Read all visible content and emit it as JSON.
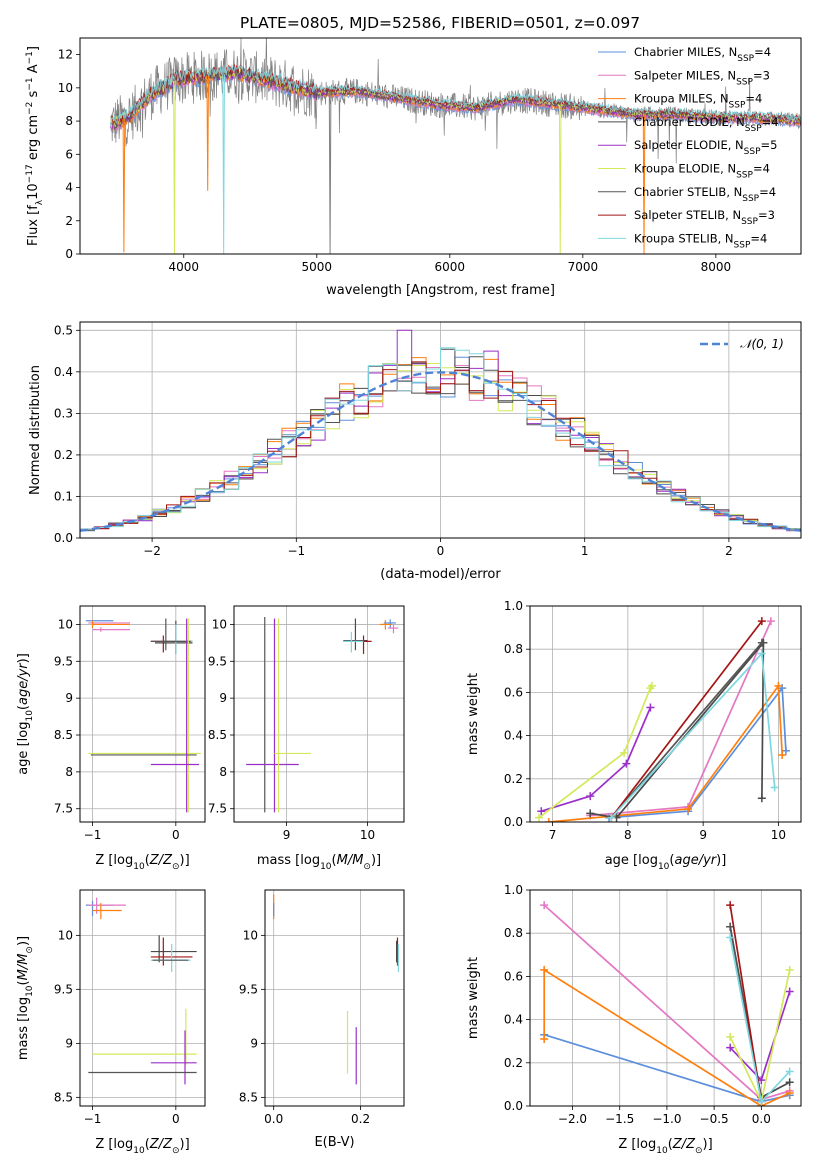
{
  "figure_title": "PLATE=0805, MJD=52586, FIBERID=0501, z=0.097",
  "colors": {
    "Chabrier MILES": "#5b8fdc",
    "Salpeter MILES": "#e377c2",
    "Kroupa MILES": "#ff7f0e",
    "Chabrier ELODIE": "#4a4a4a",
    "Salpeter ELODIE": "#9b30c8",
    "Kroupa ELODIE": "#d4e85a",
    "Chabrier STELIB": "#555555",
    "Salpeter STELIB": "#a31515",
    "Kroupa STELIB": "#7fd8e0",
    "data_spectrum": "#808080",
    "normal_curve": "#4f83d6"
  },
  "chart_data": [
    {
      "id": "spectrum",
      "type": "line",
      "xlabel": "wavelength [Angstrom, rest frame]",
      "ylabel": "Flux [fλ10⁻¹⁷ erg cm⁻² s⁻¹ A⁻¹]",
      "xlim": [
        3220,
        8640
      ],
      "ylim": [
        0,
        13
      ],
      "xticks": [
        4000,
        5000,
        6000,
        7000,
        8000
      ],
      "yticks": [
        0,
        2,
        4,
        6,
        8,
        10,
        12
      ],
      "grid": false,
      "legend_position": "upper right",
      "legend": [
        {
          "label": "Chabrier MILES, N",
          "sub": "SSP",
          "suffix": "=4",
          "color_key": "Chabrier MILES"
        },
        {
          "label": "Salpeter MILES, N",
          "sub": "SSP",
          "suffix": "=3",
          "color_key": "Salpeter MILES"
        },
        {
          "label": "Kroupa MILES, N",
          "sub": "SSP",
          "suffix": "=4",
          "color_key": "Kroupa MILES"
        },
        {
          "label": "Chabrier ELODIE, N",
          "sub": "SSP",
          "suffix": "=4",
          "color_key": "Chabrier ELODIE"
        },
        {
          "label": "Salpeter ELODIE, N",
          "sub": "SSP",
          "suffix": "=5",
          "color_key": "Salpeter ELODIE"
        },
        {
          "label": "Kroupa ELODIE, N",
          "sub": "SSP",
          "suffix": "=4",
          "color_key": "Kroupa ELODIE"
        },
        {
          "label": "Chabrier STELIB, N",
          "sub": "SSP",
          "suffix": "=4",
          "color_key": "Chabrier STELIB"
        },
        {
          "label": "Salpeter STELIB, N",
          "sub": "SSP",
          "suffix": "=3",
          "color_key": "Salpeter STELIB"
        },
        {
          "label": "Kroupa STELIB, N",
          "sub": "SSP",
          "suffix": "=4",
          "color_key": "Kroupa STELIB"
        }
      ],
      "continuum": [
        [
          3450,
          7.8
        ],
        [
          3600,
          8.3
        ],
        [
          3750,
          9.6
        ],
        [
          3950,
          10.5
        ],
        [
          4150,
          10.7
        ],
        [
          4400,
          10.9
        ],
        [
          4700,
          10.3
        ],
        [
          5000,
          9.7
        ],
        [
          5300,
          9.8
        ],
        [
          5600,
          9.4
        ],
        [
          5900,
          9.0
        ],
        [
          6200,
          8.8
        ],
        [
          6500,
          9.3
        ],
        [
          6800,
          9.0
        ],
        [
          7100,
          8.7
        ],
        [
          7400,
          8.4
        ],
        [
          7700,
          8.4
        ],
        [
          8000,
          8.2
        ],
        [
          8300,
          8.2
        ],
        [
          8640,
          8.0
        ]
      ],
      "dips": [
        {
          "x": 3550,
          "y": 0.1,
          "color_key": "Kroupa MILES"
        },
        {
          "x": 3930,
          "y": 0.0,
          "color_key": "Kroupa ELODIE"
        },
        {
          "x": 4180,
          "y": 3.8,
          "color_key": "Kroupa MILES"
        },
        {
          "x": 4300,
          "y": 0.0,
          "color_key": "Kroupa STELIB"
        },
        {
          "x": 5100,
          "y": 0.0,
          "color_key": "data_spectrum"
        },
        {
          "x": 6830,
          "y": 0.0,
          "color_key": "Kroupa ELODIE"
        },
        {
          "x": 7460,
          "y": 0.0,
          "color_key": "Kroupa MILES"
        }
      ]
    },
    {
      "id": "residual-histogram",
      "type": "bar",
      "xlabel": "(data-model)/error",
      "ylabel": "Normed distribution",
      "xlim": [
        -2.5,
        2.5
      ],
      "ylim": [
        0,
        0.52
      ],
      "xticks": [
        -2,
        -1,
        0,
        1,
        2
      ],
      "yticks": [
        0.0,
        0.1,
        0.2,
        0.3,
        0.4,
        0.5
      ],
      "grid": true,
      "legend_position": "upper right",
      "legend": [
        {
          "label": "𝒩(0, 1)",
          "style": "dashed"
        }
      ],
      "bin_width": 0.1
    },
    {
      "id": "age-vs-Z",
      "type": "scatter",
      "xlabel": "Z [log₁₀(Z/Z⊙)]",
      "ylabel": "age  [log₁₀(age/yr)]",
      "xlim": [
        -1.15,
        0.35
      ],
      "ylim": [
        7.32,
        10.25
      ],
      "xticks": [
        -1,
        0
      ],
      "yticks": [
        7.5,
        8.0,
        8.5,
        9.0,
        9.5,
        10.0
      ],
      "grid": true
    },
    {
      "id": "age-vs-mass",
      "type": "scatter",
      "xlabel": "mass [log₁₀(M/M⊙)]",
      "ylabel": "",
      "xlim": [
        8.35,
        10.45
      ],
      "ylim": [
        7.32,
        10.25
      ],
      "xticks": [
        9,
        10
      ],
      "yticks": [
        7.5,
        8.0,
        8.5,
        9.0,
        9.5,
        10.0
      ],
      "grid": true
    },
    {
      "id": "massweight-vs-age",
      "type": "line",
      "xlabel": "age  [log₁₀(age/yr)]",
      "ylabel": "mass weight",
      "xlim": [
        6.7,
        10.3
      ],
      "ylim": [
        0,
        1.0
      ],
      "xticks": [
        7,
        8,
        9,
        10
      ],
      "yticks": [
        0.0,
        0.2,
        0.4,
        0.6,
        0.8,
        1.0
      ],
      "grid": true,
      "series": [
        {
          "color_key": "Chabrier MILES",
          "x": [
            7.75,
            8.8,
            10.05,
            10.1
          ],
          "y": [
            0.02,
            0.05,
            0.62,
            0.33
          ]
        },
        {
          "color_key": "Salpeter MILES",
          "x": [
            7.5,
            8.8,
            9.9
          ],
          "y": [
            0.03,
            0.07,
            0.93
          ]
        },
        {
          "color_key": "Kroupa MILES",
          "x": [
            6.95,
            8.8,
            10.0,
            10.05
          ],
          "y": [
            0.0,
            0.06,
            0.63,
            0.31
          ]
        },
        {
          "color_key": "Chabrier ELODIE",
          "x": [
            7.5,
            7.85,
            9.8,
            9.78
          ],
          "y": [
            0.04,
            0.02,
            0.83,
            0.11
          ]
        },
        {
          "color_key": "Salpeter ELODIE",
          "x": [
            6.85,
            7.5,
            7.98,
            8.3
          ],
          "y": [
            0.05,
            0.12,
            0.27,
            0.53
          ]
        },
        {
          "color_key": "Kroupa ELODIE",
          "x": [
            6.82,
            7.95,
            8.3,
            8.32
          ],
          "y": [
            0.02,
            0.32,
            0.62,
            0.63
          ]
        },
        {
          "color_key": "Chabrier STELIB",
          "x": [
            7.78,
            9.78
          ],
          "y": [
            0.02,
            0.83
          ]
        },
        {
          "color_key": "Salpeter STELIB",
          "x": [
            7.78,
            9.78
          ],
          "y": [
            0.02,
            0.93
          ]
        },
        {
          "color_key": "Kroupa STELIB",
          "x": [
            7.78,
            9.78,
            9.95
          ],
          "y": [
            0.02,
            0.78,
            0.16
          ]
        }
      ]
    },
    {
      "id": "mass-vs-Z",
      "type": "scatter",
      "xlabel": "Z [log₁₀(Z/Z⊙)]",
      "ylabel": "mass [log₁₀(M/M⊙)]",
      "xlim": [
        -1.15,
        0.35
      ],
      "ylim": [
        8.42,
        10.42
      ],
      "xticks": [
        -1,
        0
      ],
      "yticks": [
        8.5,
        9.0,
        9.5,
        10.0
      ],
      "grid": true
    },
    {
      "id": "mass-vs-EBV",
      "type": "scatter",
      "xlabel": "E(B-V)",
      "ylabel": "",
      "xlim": [
        -0.02,
        0.3
      ],
      "ylim": [
        8.42,
        10.42
      ],
      "xticks": [
        0.0,
        0.2
      ],
      "yticks": [
        8.5,
        9.0,
        9.5,
        10.0
      ],
      "grid": true
    },
    {
      "id": "massweight-vs-Z",
      "type": "line",
      "xlabel": "Z [log₁₀(Z/Z⊙)]",
      "ylabel": "mass weight",
      "xlim": [
        -2.45,
        0.42
      ],
      "ylim": [
        0,
        1.0
      ],
      "xticks": [
        -2.0,
        -1.5,
        -1.0,
        -0.5,
        0.0
      ],
      "yticks": [
        0.0,
        0.2,
        0.4,
        0.6,
        0.8,
        1.0
      ],
      "grid": true,
      "series": [
        {
          "color_key": "Chabrier MILES",
          "x": [
            -2.3,
            0.0,
            0.3
          ],
          "y": [
            0.33,
            0.02,
            0.05
          ]
        },
        {
          "color_key": "Salpeter MILES",
          "x": [
            -2.3,
            0.0,
            0.3
          ],
          "y": [
            0.93,
            0.03,
            0.07
          ]
        },
        {
          "color_key": "Kroupa MILES",
          "x": [
            -2.3,
            -2.3,
            0.0,
            0.3
          ],
          "y": [
            0.31,
            0.63,
            0.0,
            0.06
          ]
        },
        {
          "color_key": "Chabrier ELODIE",
          "x": [
            -0.33,
            0.0,
            0.3
          ],
          "y": [
            0.83,
            0.04,
            0.11
          ]
        },
        {
          "color_key": "Salpeter ELODIE",
          "x": [
            -0.33,
            0.0,
            0.3
          ],
          "y": [
            0.27,
            0.12,
            0.53
          ]
        },
        {
          "color_key": "Kroupa ELODIE",
          "x": [
            -0.33,
            0.0,
            0.3
          ],
          "y": [
            0.32,
            0.02,
            0.63
          ]
        },
        {
          "color_key": "Chabrier STELIB",
          "x": [
            -0.33,
            0.0
          ],
          "y": [
            0.83,
            0.02
          ]
        },
        {
          "color_key": "Salpeter STELIB",
          "x": [
            -0.33,
            0.0
          ],
          "y": [
            0.93,
            0.02
          ]
        },
        {
          "color_key": "Kroupa STELIB",
          "x": [
            -0.33,
            0.0,
            0.3
          ],
          "y": [
            0.78,
            0.02,
            0.16
          ]
        }
      ]
    }
  ]
}
